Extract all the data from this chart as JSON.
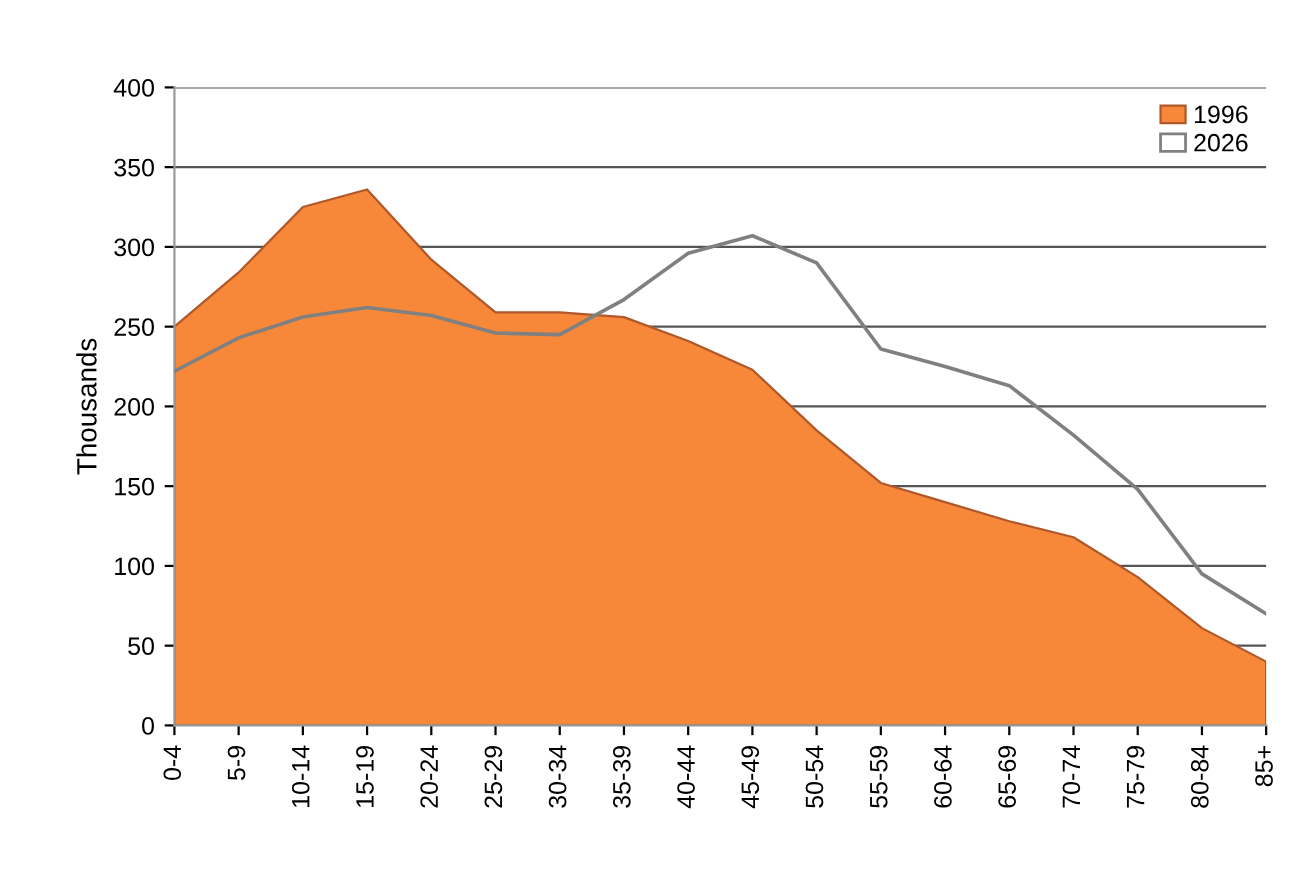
{
  "chart_data": {
    "type": "area",
    "ylabel": "Thousands",
    "categories": [
      "0-4",
      "5-9",
      "10-14",
      "15-19",
      "20-24",
      "25-29",
      "30-34",
      "35-39",
      "40-44",
      "45-49",
      "50-54",
      "55-59",
      "60-64",
      "65-69",
      "70-74",
      "75-79",
      "80-84",
      "85+"
    ],
    "series": [
      {
        "name": "1996",
        "color": "#f7883a",
        "values": [
          250,
          284,
          325,
          336,
          292,
          259,
          259,
          256,
          241,
          223,
          185,
          152,
          140,
          128,
          118,
          93,
          61,
          40
        ]
      },
      {
        "name": "2026",
        "type": "line",
        "color": "#808080",
        "values": [
          222,
          243,
          256,
          262,
          257,
          246,
          245,
          267,
          296,
          307,
          290,
          236,
          225,
          213,
          182,
          148,
          95,
          70
        ]
      }
    ],
    "ylim": [
      0,
      400
    ],
    "yticks": [
      0,
      50,
      100,
      150,
      200,
      250,
      300,
      350,
      400
    ],
    "grid": "y",
    "legend": "top right"
  }
}
